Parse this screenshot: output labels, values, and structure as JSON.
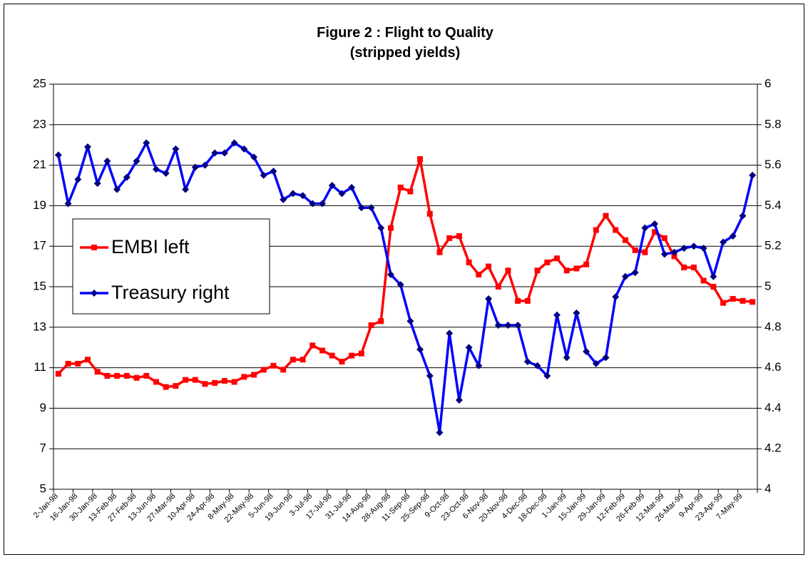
{
  "chart_data": {
    "type": "line",
    "title": "Figure  2  : Flight to Quality",
    "subtitle": "(stripped yields)",
    "categories": [
      "2-Jan-98",
      null,
      "16-Jan-98",
      null,
      "30-Jan-98",
      null,
      "13-Feb-98",
      null,
      "27-Feb-98",
      null,
      "13-Jun-98",
      null,
      "27-Mar-98",
      null,
      "10-Apr-98",
      null,
      "24-Apr-98",
      null,
      "8-May-98",
      null,
      "22-May-98",
      null,
      "5-Jun-98",
      null,
      "19-Jun-98",
      null,
      "3-Jul-98",
      null,
      "17-Jul-98",
      null,
      "31-Jul-98",
      null,
      "14-Aug-98",
      null,
      "28-Aug-98",
      null,
      "11-Sep-98",
      null,
      "25-Sep-98",
      null,
      "9-Oct-98",
      null,
      "23-Oct-98",
      null,
      "6-Nov-98",
      null,
      "20-Nov-98",
      null,
      "4-Dec-98",
      null,
      "18-Dec-98",
      null,
      "1-Jan-99",
      null,
      "15-Jan-99",
      null,
      "29-Jan-99",
      null,
      "12-Feb-99",
      null,
      "26-Feb-99",
      null,
      "12-Mar-99",
      null,
      "26-Mar-99",
      null,
      "9-Apr-99",
      null,
      "23-Apr-99",
      null,
      "7-May-99",
      null
    ],
    "series": [
      {
        "name": "EMBI left",
        "color": "#ff0000",
        "axis": "y",
        "marker": "square",
        "values": [
          10.7,
          11.2,
          11.2,
          11.4,
          10.8,
          10.6,
          10.6,
          10.6,
          10.5,
          10.6,
          10.3,
          10.05,
          10.1,
          10.4,
          10.4,
          10.2,
          10.25,
          10.35,
          10.3,
          10.55,
          10.65,
          10.9,
          11.1,
          10.9,
          11.4,
          11.4,
          12.1,
          11.85,
          11.6,
          11.3,
          11.6,
          11.7,
          13.1,
          13.3,
          17.9,
          19.9,
          19.7,
          21.3,
          18.6,
          16.7,
          17.4,
          17.5,
          16.2,
          15.6,
          16.0,
          15.0,
          15.8,
          14.3,
          14.3,
          15.8,
          16.2,
          16.4,
          15.8,
          15.9,
          16.1,
          17.8,
          18.5,
          17.8,
          17.3,
          16.8,
          16.7,
          17.7,
          17.4,
          16.5,
          15.95,
          15.95,
          15.3,
          15.0,
          14.2,
          14.4,
          14.3,
          14.25
        ]
      },
      {
        "name": "Treasury right",
        "color": "#0000ff",
        "axis": "y2",
        "marker": "diamond",
        "values": [
          5.65,
          5.41,
          5.53,
          5.69,
          5.51,
          5.62,
          5.48,
          5.54,
          5.62,
          5.71,
          5.58,
          5.56,
          5.68,
          5.48,
          5.59,
          5.6,
          5.66,
          5.66,
          5.71,
          5.68,
          5.64,
          5.55,
          5.57,
          5.43,
          5.46,
          5.45,
          5.41,
          5.41,
          5.5,
          5.46,
          5.49,
          5.39,
          5.39,
          5.29,
          5.06,
          5.01,
          4.83,
          4.69,
          4.56,
          4.28,
          4.77,
          4.44,
          4.7,
          4.61,
          4.94,
          4.81,
          4.81,
          4.81,
          4.63,
          4.61,
          4.56,
          4.86,
          4.65,
          4.87,
          4.68,
          4.62,
          4.65,
          4.95,
          5.05,
          5.07,
          5.29,
          5.31,
          5.16,
          5.17,
          5.19,
          5.2,
          5.19,
          5.05,
          5.22,
          5.25,
          5.35,
          5.55
        ]
      }
    ],
    "ylim": [
      5,
      25
    ],
    "yticks": [
      5,
      7,
      9,
      11,
      13,
      15,
      17,
      19,
      21,
      23,
      25
    ],
    "y2lim": [
      4,
      6
    ],
    "y2ticks": [
      4,
      4.2,
      4.4,
      4.6,
      4.8,
      5,
      5.2,
      5.4,
      5.6,
      5.8,
      6
    ],
    "grid": true,
    "legend": "left"
  }
}
